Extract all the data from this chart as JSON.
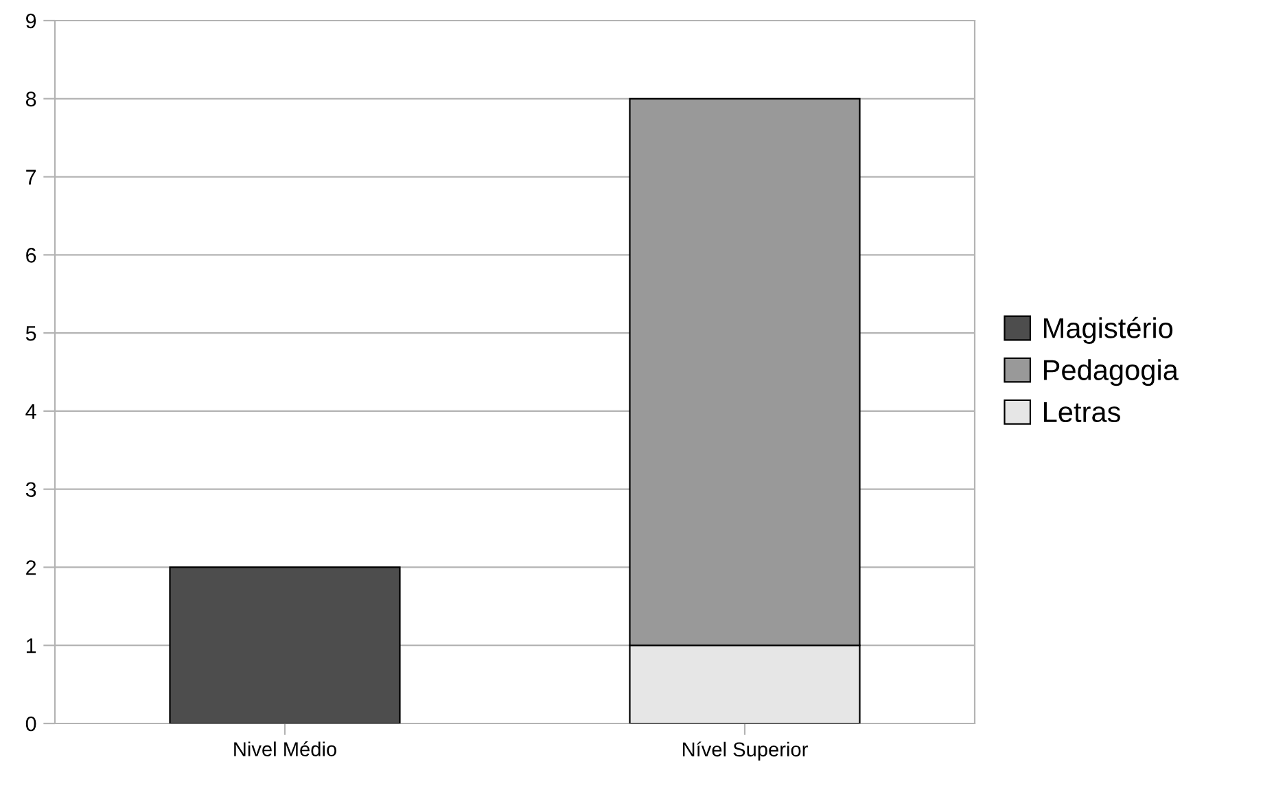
{
  "chart_data": {
    "type": "bar",
    "stacked": true,
    "categories": [
      "Nivel Médio",
      "Nível Superior"
    ],
    "series": [
      {
        "name": "Letras",
        "color": "#e6e6e6",
        "values": [
          null,
          1
        ]
      },
      {
        "name": "Pedagogia",
        "color": "#999999",
        "values": [
          null,
          7
        ]
      },
      {
        "name": "Magistério",
        "color": "#4d4d4d",
        "values": [
          2,
          null
        ]
      }
    ],
    "ylim": [
      0,
      9
    ],
    "yticks": [
      0,
      1,
      2,
      3,
      4,
      5,
      6,
      7,
      8,
      9
    ],
    "grid": "y",
    "legend": "right"
  }
}
